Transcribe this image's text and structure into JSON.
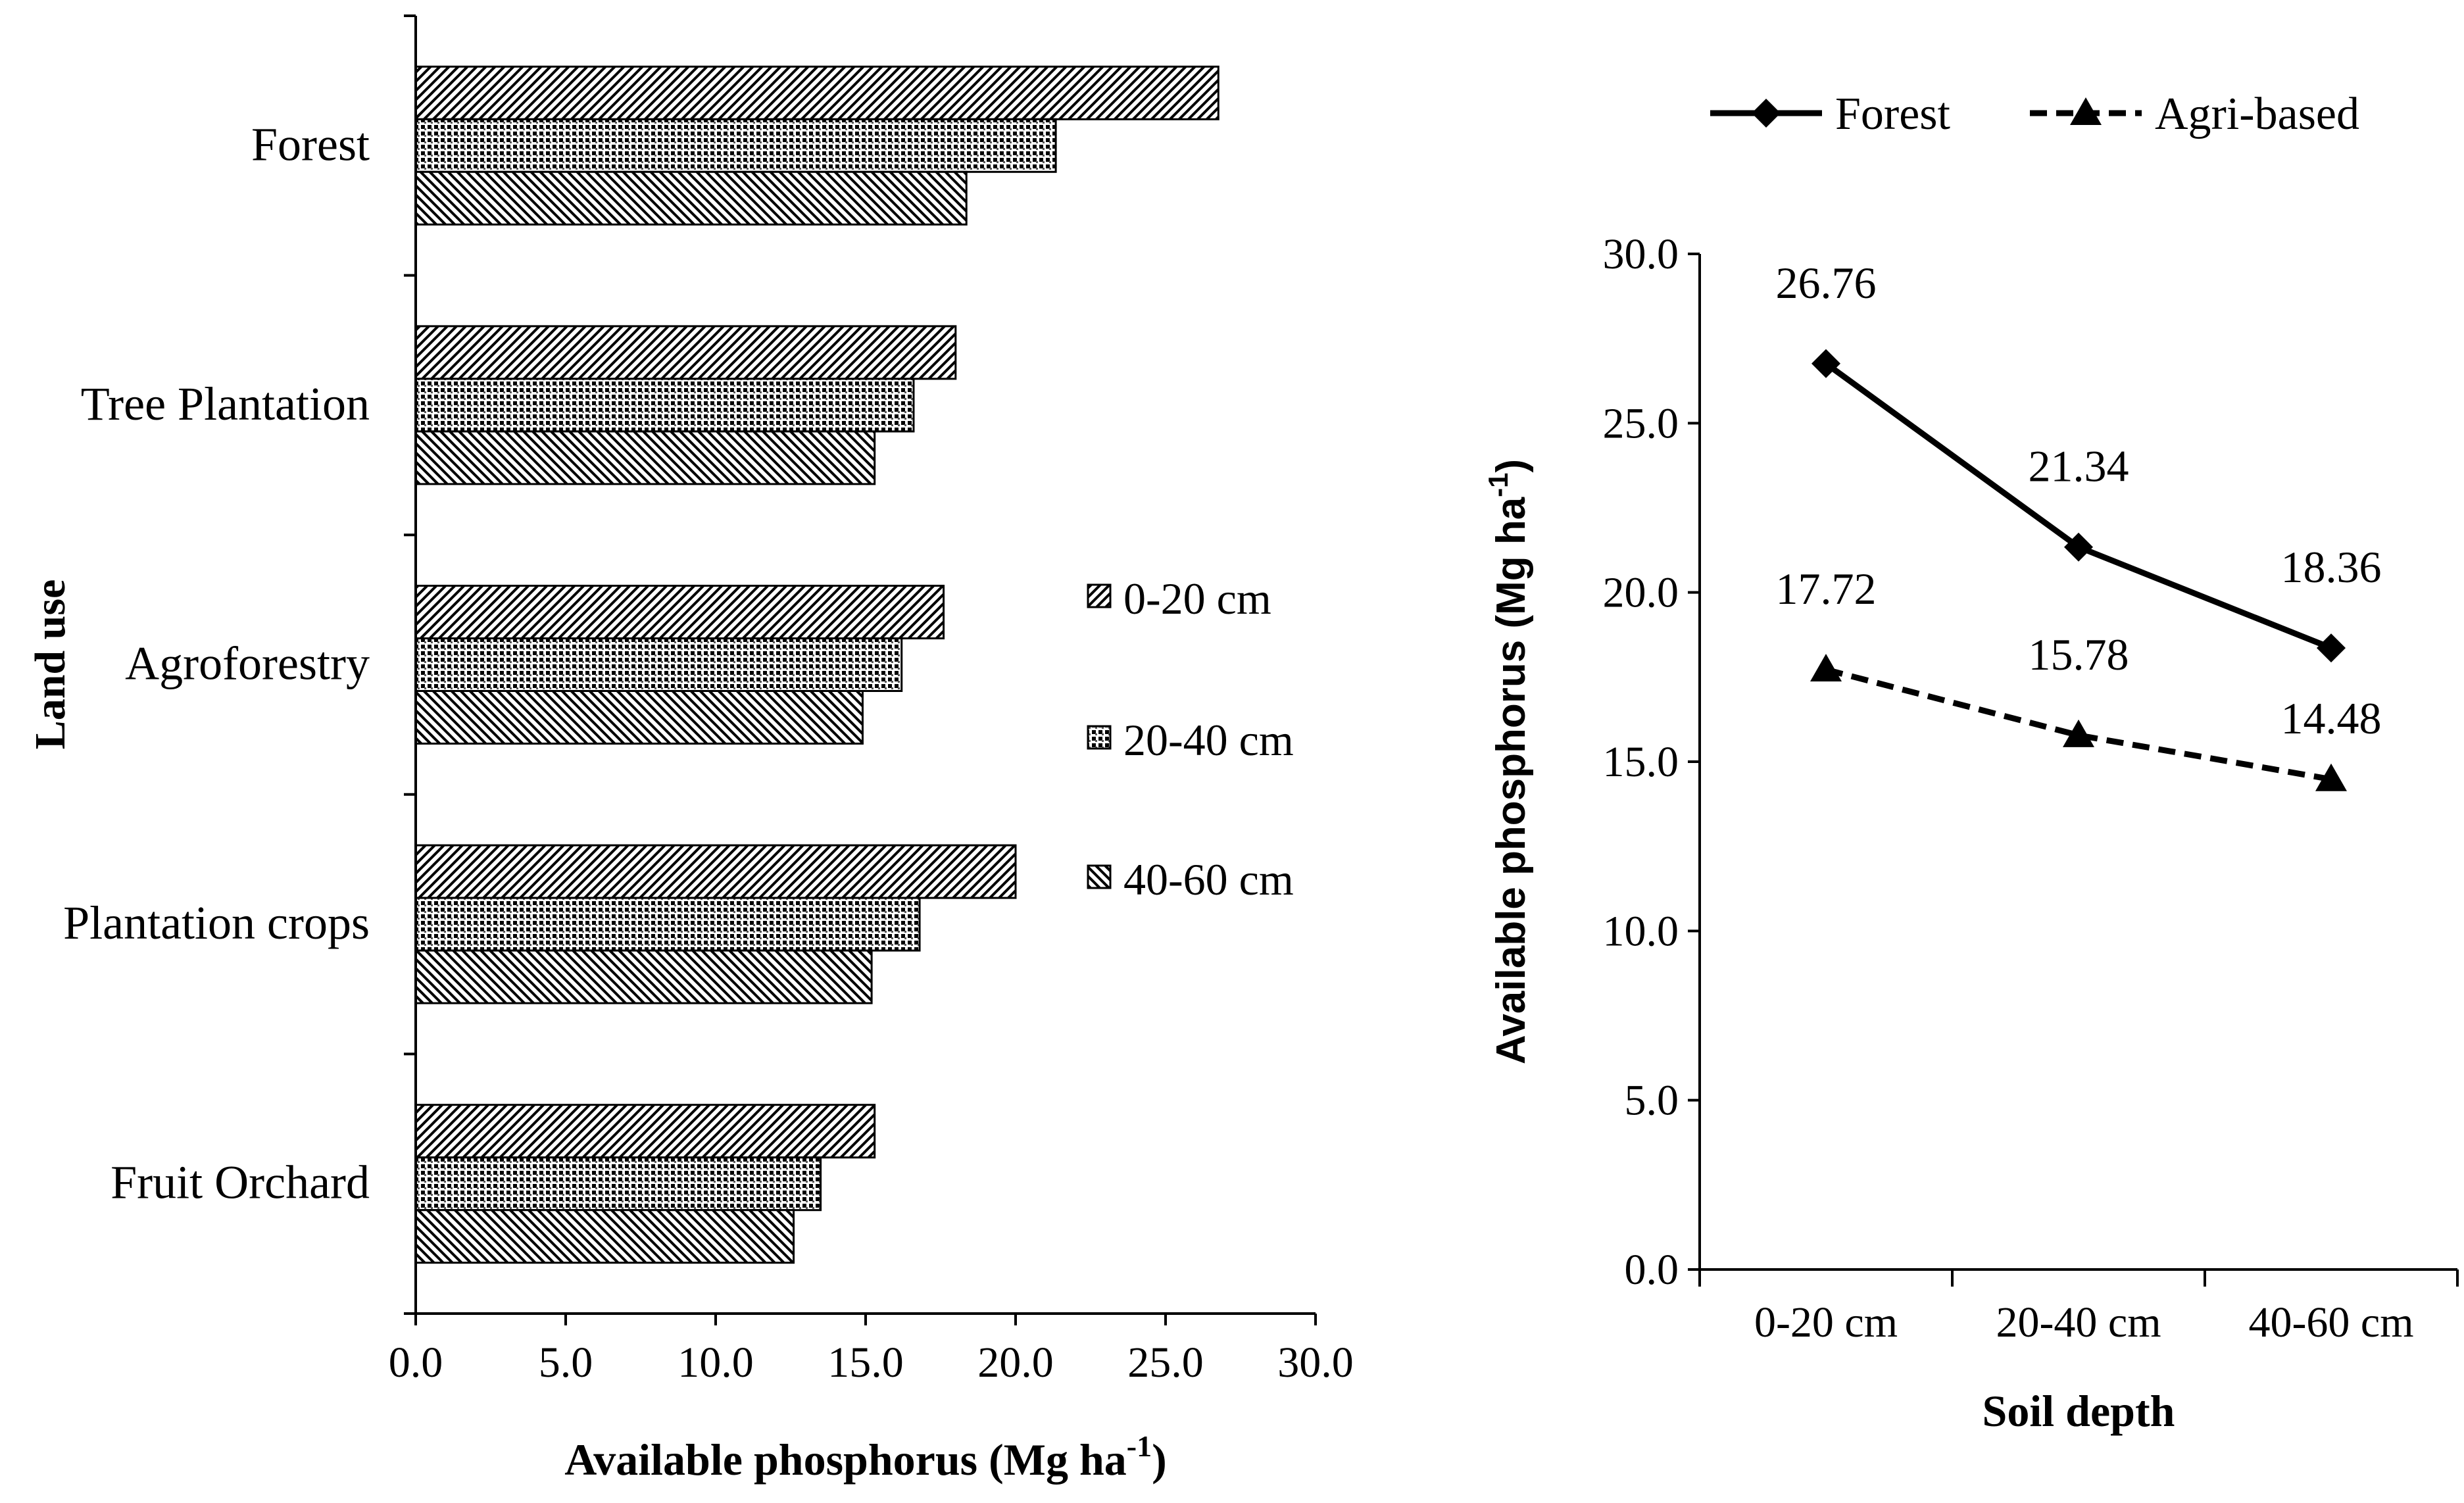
{
  "chart_data": [
    {
      "type": "bar",
      "orientation": "horizontal",
      "title": "",
      "ylabel": "Land use",
      "xlabel": "Available phosphorus (Mg ha",
      "xlabel_sup": "-1",
      "xlabel_close": ")",
      "xlim": [
        0,
        30
      ],
      "xticks": [
        "0.0",
        "5.0",
        "10.0",
        "15.0",
        "20.0",
        "25.0",
        "30.0"
      ],
      "categories": [
        "Forest",
        "Tree Plantation",
        "Agroforestry",
        "Plantation crops",
        "Fruit Orchard"
      ],
      "series": [
        {
          "name": "0-20 cm",
          "pattern": "diagonal-right",
          "values": [
            26.76,
            18.0,
            17.6,
            20.0,
            15.3
          ]
        },
        {
          "name": "20-40 cm",
          "pattern": "crosshatch",
          "values": [
            21.34,
            16.6,
            16.2,
            16.8,
            13.5
          ]
        },
        {
          "name": "40-60 cm",
          "pattern": "diagonal-left",
          "values": [
            18.36,
            15.3,
            14.9,
            15.2,
            12.6
          ]
        }
      ],
      "legend_position": "right"
    },
    {
      "type": "line",
      "title": "",
      "xlabel": "Soil depth",
      "ylabel": "Available phosphorus (Mg ha",
      "ylabel_sup": "-1",
      "ylabel_close": ")",
      "ylim": [
        0,
        30
      ],
      "yticks": [
        "0.0",
        "5.0",
        "10.0",
        "15.0",
        "20.0",
        "25.0",
        "30.0"
      ],
      "categories": [
        "0-20 cm",
        "20-40 cm",
        "40-60 cm"
      ],
      "series": [
        {
          "name": "Forest",
          "marker": "diamond",
          "line": "solid",
          "values": [
            26.76,
            21.34,
            18.36
          ],
          "labels": [
            "26.76",
            "21.34",
            "18.36"
          ]
        },
        {
          "name": "Agri-based",
          "marker": "triangle",
          "line": "dashed",
          "values": [
            17.72,
            15.78,
            14.48
          ],
          "labels": [
            "17.72",
            "15.78",
            "14.48"
          ]
        }
      ],
      "legend_position": "top"
    }
  ]
}
